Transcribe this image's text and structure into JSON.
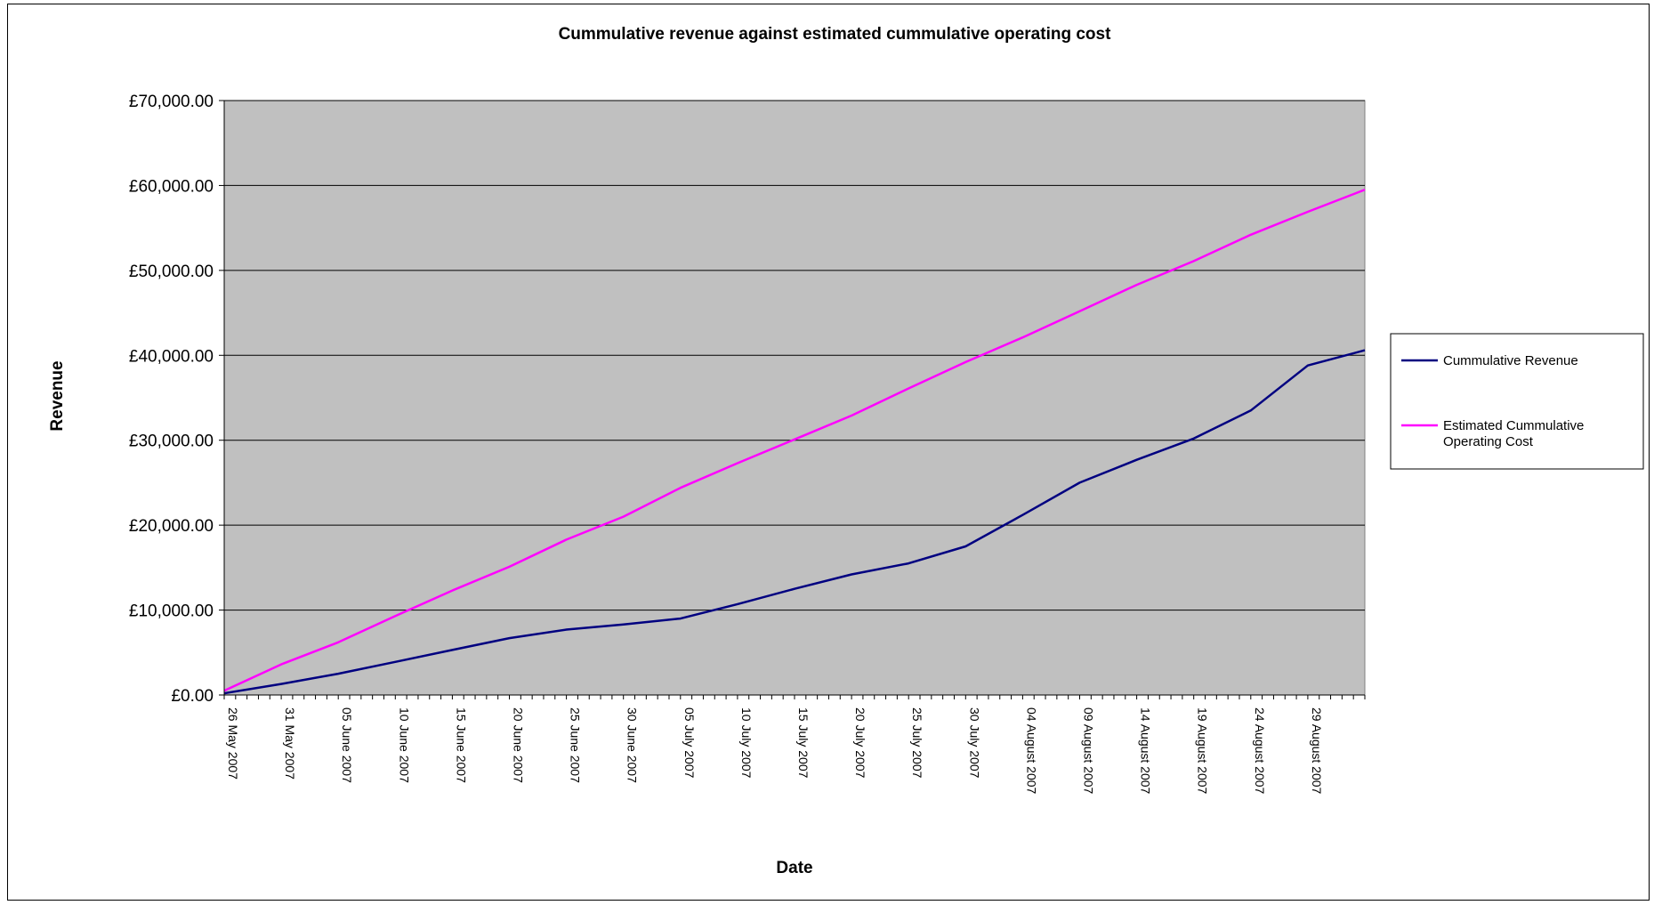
{
  "chart_data": {
    "type": "line",
    "title": "Cummulative revenue against estimated cummulative operating cost",
    "xlabel": "Date",
    "ylabel": "Revenue",
    "ylim": [
      0,
      70000
    ],
    "yticks": [
      "£0.00",
      "£10,000.00",
      "£20,000.00",
      "£30,000.00",
      "£40,000.00",
      "£50,000.00",
      "£60,000.00",
      "£70,000.00"
    ],
    "ytick_values": [
      0,
      10000,
      20000,
      30000,
      40000,
      50000,
      60000,
      70000
    ],
    "xtick_labels": [
      "26 May 2007",
      "31 May 2007",
      "05 June 2007",
      "10 June 2007",
      "15 June 2007",
      "20 June 2007",
      "25 June 2007",
      "30 June 2007",
      "05 July 2007",
      "10 July 2007",
      "15 July 2007",
      "20 July 2007",
      "25 July 2007",
      "30 July 2007",
      "04 August 2007",
      "09 August 2007",
      "14 August 2007",
      "19 August 2007",
      "24 August 2007",
      "29 August 2007"
    ],
    "x_start": "2007-05-26",
    "x_end": "2007-09-03",
    "grid": true,
    "legend_position": "right",
    "background": "#c0c0c0",
    "series": [
      {
        "name": "Cummulative Revenue",
        "color": "#000080",
        "x": [
          "2007-05-26",
          "2007-05-31",
          "2007-06-05",
          "2007-06-10",
          "2007-06-15",
          "2007-06-20",
          "2007-06-25",
          "2007-06-30",
          "2007-07-05",
          "2007-07-10",
          "2007-07-15",
          "2007-07-20",
          "2007-07-25",
          "2007-07-30",
          "2007-08-04",
          "2007-08-09",
          "2007-08-14",
          "2007-08-19",
          "2007-08-24",
          "2007-08-29",
          "2007-09-03"
        ],
        "values": [
          200,
          1300,
          2500,
          3900,
          5300,
          6700,
          7700,
          8300,
          9000,
          10700,
          12500,
          14200,
          15500,
          17500,
          21200,
          25000,
          27700,
          30200,
          33500,
          38800,
          40600
        ]
      },
      {
        "name": "Estimated Cummulative Operating Cost",
        "color": "#ff00ff",
        "x": [
          "2007-05-26",
          "2007-05-31",
          "2007-06-05",
          "2007-06-10",
          "2007-06-15",
          "2007-06-20",
          "2007-06-25",
          "2007-06-30",
          "2007-07-05",
          "2007-07-10",
          "2007-07-15",
          "2007-07-20",
          "2007-07-25",
          "2007-07-30",
          "2007-08-04",
          "2007-08-09",
          "2007-08-14",
          "2007-08-19",
          "2007-08-24",
          "2007-08-29",
          "2007-09-03"
        ],
        "values": [
          500,
          3600,
          6200,
          9300,
          12300,
          15100,
          18300,
          21000,
          24400,
          27300,
          30100,
          32900,
          36100,
          39200,
          42100,
          45200,
          48300,
          51100,
          54200,
          56900,
          59500
        ]
      }
    ]
  }
}
